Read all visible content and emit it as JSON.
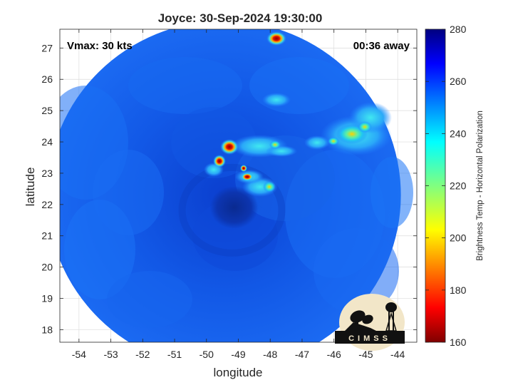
{
  "title": "Joyce: 30-Sep-2024 19:30:00",
  "vmax_text": "Vmax: 30 kts",
  "time_away_text": "00:36 away",
  "map": {
    "xlabel": "longitude",
    "ylabel": "latitude",
    "xlim": [
      -54.6,
      -43.4
    ],
    "ylim": [
      17.6,
      27.6
    ],
    "xticks": [
      "-54",
      "-53",
      "-52",
      "-51",
      "-50",
      "-49",
      "-48",
      "-47",
      "-46",
      "-45",
      "-44"
    ],
    "yticks": [
      "18",
      "19",
      "20",
      "21",
      "22",
      "23",
      "24",
      "25",
      "26",
      "27"
    ],
    "swath_center": [
      -49.45,
      22.3
    ],
    "swath_radius_deg": 5.55,
    "storm_center": [
      -49.2,
      22.0
    ],
    "grid": true
  },
  "colorbar": {
    "label": "Brightness Temp - Horizontal Polarization",
    "min": 160,
    "max": 280,
    "ticks": [
      "160",
      "180",
      "200",
      "220",
      "240",
      "260",
      "280"
    ],
    "colormap": "jet"
  },
  "logo": {
    "text": "CIMSS"
  },
  "colors": {
    "field_base": "#1560ee",
    "field_dark": "#0a3ac2",
    "cold_core": "#a00000",
    "grid": "#dcdcdc"
  }
}
